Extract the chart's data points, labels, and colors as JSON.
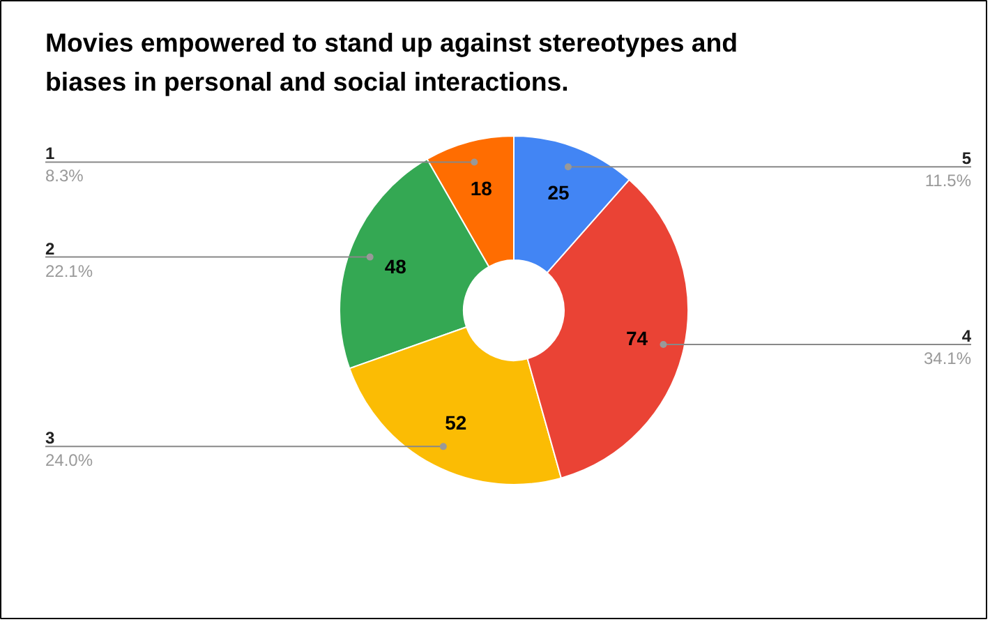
{
  "chart_data": {
    "type": "donut",
    "title": "Movies empowered to stand up against stereotypes and biases in personal and social interactions.",
    "categories": [
      "1",
      "2",
      "3",
      "4",
      "5"
    ],
    "values": [
      18,
      48,
      52,
      74,
      25
    ],
    "colors": [
      "#ff6d01",
      "#34a853",
      "#fbbc04",
      "#ea4335",
      "#4285f4"
    ],
    "data_labels": true,
    "annotations": [
      "8.3%",
      "22.1%",
      "24.0%",
      "34.1%",
      "11.5%"
    ]
  }
}
